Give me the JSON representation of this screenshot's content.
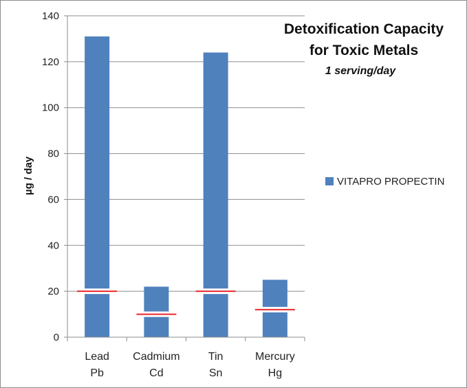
{
  "chart_data": {
    "type": "bar",
    "title": "Detoxification Capacity",
    "title_line2": "for Toxic Metals",
    "subtitle": "1 serving/day",
    "ylabel": "µg / day",
    "ylim": [
      0,
      140
    ],
    "yticks": [
      0,
      20,
      40,
      60,
      80,
      100,
      120,
      140
    ],
    "categories": [
      {
        "line1": "Lead",
        "line2": "Pb"
      },
      {
        "line1": "Cadmium",
        "line2": "Cd"
      },
      {
        "line1": "Tin",
        "line2": "Sn"
      },
      {
        "line1": "Mercury",
        "line2": "Hg"
      }
    ],
    "series": [
      {
        "name": "VITAPRO PROPECTIN",
        "values": [
          131,
          22,
          124,
          25
        ],
        "color": "#4f81bd"
      }
    ],
    "reference_lines": {
      "values": [
        20,
        10,
        20,
        12
      ],
      "color": "#e8262b"
    },
    "grid": true,
    "legend_position": "right"
  }
}
